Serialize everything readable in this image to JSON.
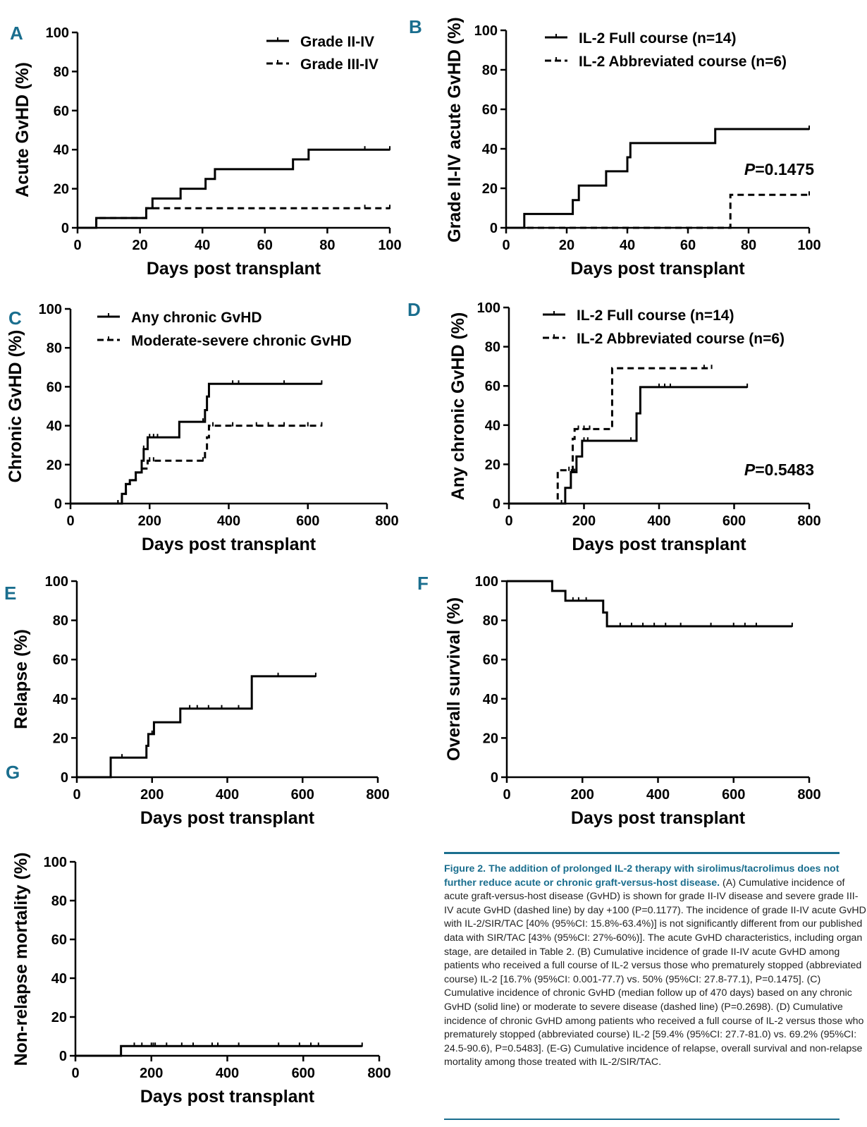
{
  "colors": {
    "accent": "#1a6e8e",
    "ink": "#000000"
  },
  "chart_data": [
    {
      "panel": "A",
      "type": "line",
      "xlabel": "Days post transplant",
      "ylabel": "Acute GvHD (%)",
      "xlim": [
        0,
        100
      ],
      "ylim": [
        0,
        100
      ],
      "xticks": [
        0,
        20,
        40,
        60,
        80,
        100
      ],
      "yticks": [
        0,
        20,
        40,
        60,
        80,
        100
      ],
      "legend_position": "top-right",
      "series": [
        {
          "name": "Grade II-IV",
          "style": "solid",
          "steps": [
            [
              0,
              0
            ],
            [
              6,
              5
            ],
            [
              22,
              10
            ],
            [
              24,
              15
            ],
            [
              33,
              20
            ],
            [
              41,
              25
            ],
            [
              44,
              30
            ],
            [
              69,
              35
            ],
            [
              74,
              40
            ],
            [
              100,
              40
            ]
          ],
          "censors": [
            [
              92,
              40
            ],
            [
              100,
              40
            ]
          ]
        },
        {
          "name": "Grade III-IV",
          "style": "dashed",
          "steps": [
            [
              0,
              0
            ],
            [
              6,
              5
            ],
            [
              22,
              10
            ],
            [
              100,
              10
            ]
          ],
          "censors": [
            [
              92,
              10
            ],
            [
              100,
              10
            ]
          ]
        }
      ]
    },
    {
      "panel": "B",
      "type": "line",
      "xlabel": "Days post transplant",
      "ylabel": "Grade II-IV acute GvHD (%)",
      "xlim": [
        0,
        100
      ],
      "ylim": [
        0,
        100
      ],
      "xticks": [
        0,
        20,
        40,
        60,
        80,
        100
      ],
      "yticks": [
        0,
        20,
        40,
        60,
        80,
        100
      ],
      "legend_position": "top-right",
      "annotation": {
        "italic": "P",
        "text": "=0.1475"
      },
      "series": [
        {
          "name": "IL-2 Full course (n=14)",
          "style": "solid",
          "steps": [
            [
              0,
              0
            ],
            [
              6,
              7
            ],
            [
              22,
              14
            ],
            [
              24,
              21.4
            ],
            [
              33,
              28.6
            ],
            [
              40,
              35.7
            ],
            [
              41,
              42.9
            ],
            [
              69,
              50
            ],
            [
              100,
              50
            ]
          ],
          "censors": [
            [
              100,
              50
            ]
          ]
        },
        {
          "name": "IL-2 Abbreviated course (n=6)",
          "style": "dashed",
          "steps": [
            [
              0,
              0
            ],
            [
              74,
              16.7
            ],
            [
              100,
              16.7
            ]
          ],
          "censors": [
            [
              100,
              16.7
            ]
          ]
        }
      ]
    },
    {
      "panel": "C",
      "type": "line",
      "xlabel": "Days post transplant",
      "ylabel": "Chronic GvHD (%)",
      "xlim": [
        0,
        800
      ],
      "ylim": [
        0,
        100
      ],
      "xticks": [
        0,
        200,
        400,
        600,
        800
      ],
      "yticks": [
        0,
        20,
        40,
        60,
        80,
        100
      ],
      "legend_position": "top",
      "series": [
        {
          "name": "Any chronic GvHD",
          "style": "solid",
          "steps": [
            [
              0,
              0
            ],
            [
              120,
              0
            ],
            [
              130,
              5
            ],
            [
              140,
              10
            ],
            [
              150,
              12
            ],
            [
              165,
              16
            ],
            [
              180,
              22
            ],
            [
              185,
              28
            ],
            [
              195,
              34
            ],
            [
              275,
              42
            ],
            [
              340,
              48
            ],
            [
              345,
              55
            ],
            [
              350,
              61.5
            ],
            [
              635,
              61.5
            ]
          ],
          "censors": [
            [
              120,
              0
            ],
            [
              185,
              28
            ],
            [
              200,
              34
            ],
            [
              210,
              34
            ],
            [
              220,
              34
            ],
            [
              335,
              42
            ],
            [
              410,
              61.5
            ],
            [
              425,
              61.5
            ],
            [
              540,
              61.5
            ],
            [
              635,
              61.5
            ]
          ]
        },
        {
          "name": "Moderate-severe chronic GvHD",
          "style": "dashed",
          "steps": [
            [
              0,
              0
            ],
            [
              120,
              0
            ],
            [
              130,
              5
            ],
            [
              140,
              10
            ],
            [
              150,
              12
            ],
            [
              165,
              16
            ],
            [
              180,
              18
            ],
            [
              195,
              22
            ],
            [
              340,
              27
            ],
            [
              345,
              34
            ],
            [
              350,
              40
            ],
            [
              635,
              40
            ]
          ],
          "censors": [
            [
              120,
              0
            ],
            [
              200,
              22
            ],
            [
              210,
              22
            ],
            [
              335,
              22
            ],
            [
              360,
              40
            ],
            [
              410,
              40
            ],
            [
              470,
              40
            ],
            [
              500,
              40
            ],
            [
              540,
              40
            ],
            [
              600,
              40
            ],
            [
              635,
              40
            ]
          ]
        }
      ]
    },
    {
      "panel": "D",
      "type": "line",
      "xlabel": "Days post transplant",
      "ylabel": "Any chronic GvHD (%)",
      "xlim": [
        0,
        800
      ],
      "ylim": [
        0,
        100
      ],
      "xticks": [
        0,
        200,
        400,
        600,
        800
      ],
      "yticks": [
        0,
        20,
        40,
        60,
        80,
        100
      ],
      "legend_position": "top-right",
      "annotation": {
        "italic": "P",
        "text": "=0.5483"
      },
      "series": [
        {
          "name": "IL-2 Full course (n=14)",
          "style": "solid",
          "steps": [
            [
              0,
              0
            ],
            [
              140,
              0
            ],
            [
              150,
              8
            ],
            [
              165,
              16
            ],
            [
              180,
              24
            ],
            [
              195,
              32
            ],
            [
              340,
              46
            ],
            [
              350,
              59.4
            ],
            [
              635,
              59.4
            ]
          ],
          "censors": [
            [
              140,
              0
            ],
            [
              175,
              16
            ],
            [
              200,
              32
            ],
            [
              210,
              32
            ],
            [
              325,
              32
            ],
            [
              400,
              59.4
            ],
            [
              415,
              59.4
            ],
            [
              430,
              59.4
            ],
            [
              635,
              59.4
            ]
          ]
        },
        {
          "name": "IL-2 Abbreviated course (n=6)",
          "style": "dashed",
          "steps": [
            [
              0,
              0
            ],
            [
              130,
              17
            ],
            [
              170,
              33
            ],
            [
              175,
              38
            ],
            [
              275,
              69
            ],
            [
              540,
              69
            ]
          ],
          "censors": [
            [
              160,
              17
            ],
            [
              185,
              38
            ],
            [
              200,
              38
            ],
            [
              215,
              38
            ],
            [
              520,
              69
            ],
            [
              540,
              69
            ]
          ]
        }
      ]
    },
    {
      "panel": "E",
      "type": "line",
      "xlabel": "Days post transplant",
      "ylabel": "Relapse (%)",
      "xlim": [
        0,
        800
      ],
      "ylim": [
        0,
        100
      ],
      "xticks": [
        0,
        200,
        400,
        600,
        800
      ],
      "yticks": [
        0,
        20,
        40,
        60,
        80,
        100
      ],
      "series": [
        {
          "style": "solid",
          "steps": [
            [
              0,
              0
            ],
            [
              90,
              10
            ],
            [
              185,
              16
            ],
            [
              190,
              22
            ],
            [
              205,
              28
            ],
            [
              275,
              35
            ],
            [
              465,
              51.5
            ],
            [
              635,
              51.5
            ]
          ],
          "censors": [
            [
              90,
              0
            ],
            [
              120,
              10
            ],
            [
              200,
              22
            ],
            [
              275,
              28
            ],
            [
              300,
              35
            ],
            [
              320,
              35
            ],
            [
              350,
              35
            ],
            [
              385,
              35
            ],
            [
              430,
              35
            ],
            [
              535,
              51.5
            ],
            [
              635,
              51.5
            ]
          ]
        }
      ]
    },
    {
      "panel": "F",
      "type": "line",
      "xlabel": "Days post transplant",
      "ylabel": "Overall survival (%)",
      "xlim": [
        0,
        800
      ],
      "ylim": [
        0,
        100
      ],
      "xticks": [
        0,
        200,
        400,
        600,
        800
      ],
      "yticks": [
        0,
        20,
        40,
        60,
        80,
        100
      ],
      "series": [
        {
          "style": "solid",
          "steps": [
            [
              0,
              100
            ],
            [
              120,
              95
            ],
            [
              155,
              90
            ],
            [
              255,
              84
            ],
            [
              265,
              77
            ],
            [
              755,
              77
            ]
          ],
          "censors": [
            [
              175,
              90
            ],
            [
              190,
              90
            ],
            [
              210,
              90
            ],
            [
              300,
              77
            ],
            [
              330,
              77
            ],
            [
              360,
              77
            ],
            [
              390,
              77
            ],
            [
              420,
              77
            ],
            [
              460,
              77
            ],
            [
              540,
              77
            ],
            [
              600,
              77
            ],
            [
              630,
              77
            ],
            [
              660,
              77
            ],
            [
              755,
              77
            ]
          ]
        }
      ]
    },
    {
      "panel": "G",
      "type": "line",
      "xlabel": "Days post transplant",
      "ylabel": "Non-relapse mortality (%)",
      "xlim": [
        0,
        800
      ],
      "ylim": [
        0,
        100
      ],
      "xticks": [
        0,
        200,
        400,
        600,
        800
      ],
      "yticks": [
        0,
        20,
        40,
        60,
        80,
        100
      ],
      "series": [
        {
          "style": "solid",
          "steps": [
            [
              0,
              0
            ],
            [
              120,
              5
            ],
            [
              755,
              5
            ]
          ],
          "censors": [
            [
              155,
              5
            ],
            [
              175,
              5
            ],
            [
              200,
              5
            ],
            [
              205,
              5
            ],
            [
              210,
              5
            ],
            [
              240,
              5
            ],
            [
              280,
              5
            ],
            [
              310,
              5
            ],
            [
              360,
              5
            ],
            [
              375,
              5
            ],
            [
              430,
              5
            ],
            [
              535,
              5
            ],
            [
              590,
              5
            ],
            [
              620,
              5
            ],
            [
              640,
              5
            ],
            [
              755,
              5
            ]
          ]
        }
      ]
    }
  ],
  "caption": {
    "title": "Figure 2. The addition of prolonged IL-2 therapy with sirolimus/tacrolimus does not further reduce acute or chronic graft-versus-host disease.",
    "body": "(A) Cumulative incidence of acute graft-versus-host disease (GvHD) is shown for grade II-IV disease and severe grade III-IV acute GvHD (dashed line) by day +100 (P=0.1177). The incidence of grade II-IV acute GvHD with IL-2/SIR/TAC [40% (95%CI: 15.8%-63.4%)] is not significantly different from our published data with SIR/TAC [43% (95%CI: 27%-60%)]. The acute GvHD characteristics, including organ stage, are detailed in Table 2. (B) Cumulative incidence of grade II-IV acute GvHD among patients who received a full course of IL-2 versus those who prematurely stopped (abbreviated course) IL-2 [16.7% (95%CI: 0.001-77.7) vs. 50% (95%CI: 27.8-77.1), P=0.1475]. (C) Cumulative incidence of chronic GvHD (median follow up of 470 days) based on any chronic GvHD (solid line) or moderate to severe disease (dashed line) (P=0.2698). (D) Cumulative incidence of chronic GvHD among patients who received a full course of IL-2 versus those who prematurely stopped (abbreviated course) IL-2 [59.4% (95%CI: 27.7-81.0) vs. 69.2% (95%CI: 24.5-90.6), P=0.5483]. (E-G) Cumulative incidence of relapse, overall survival and non-relapse mortality among those treated with IL-2/SIR/TAC."
  }
}
